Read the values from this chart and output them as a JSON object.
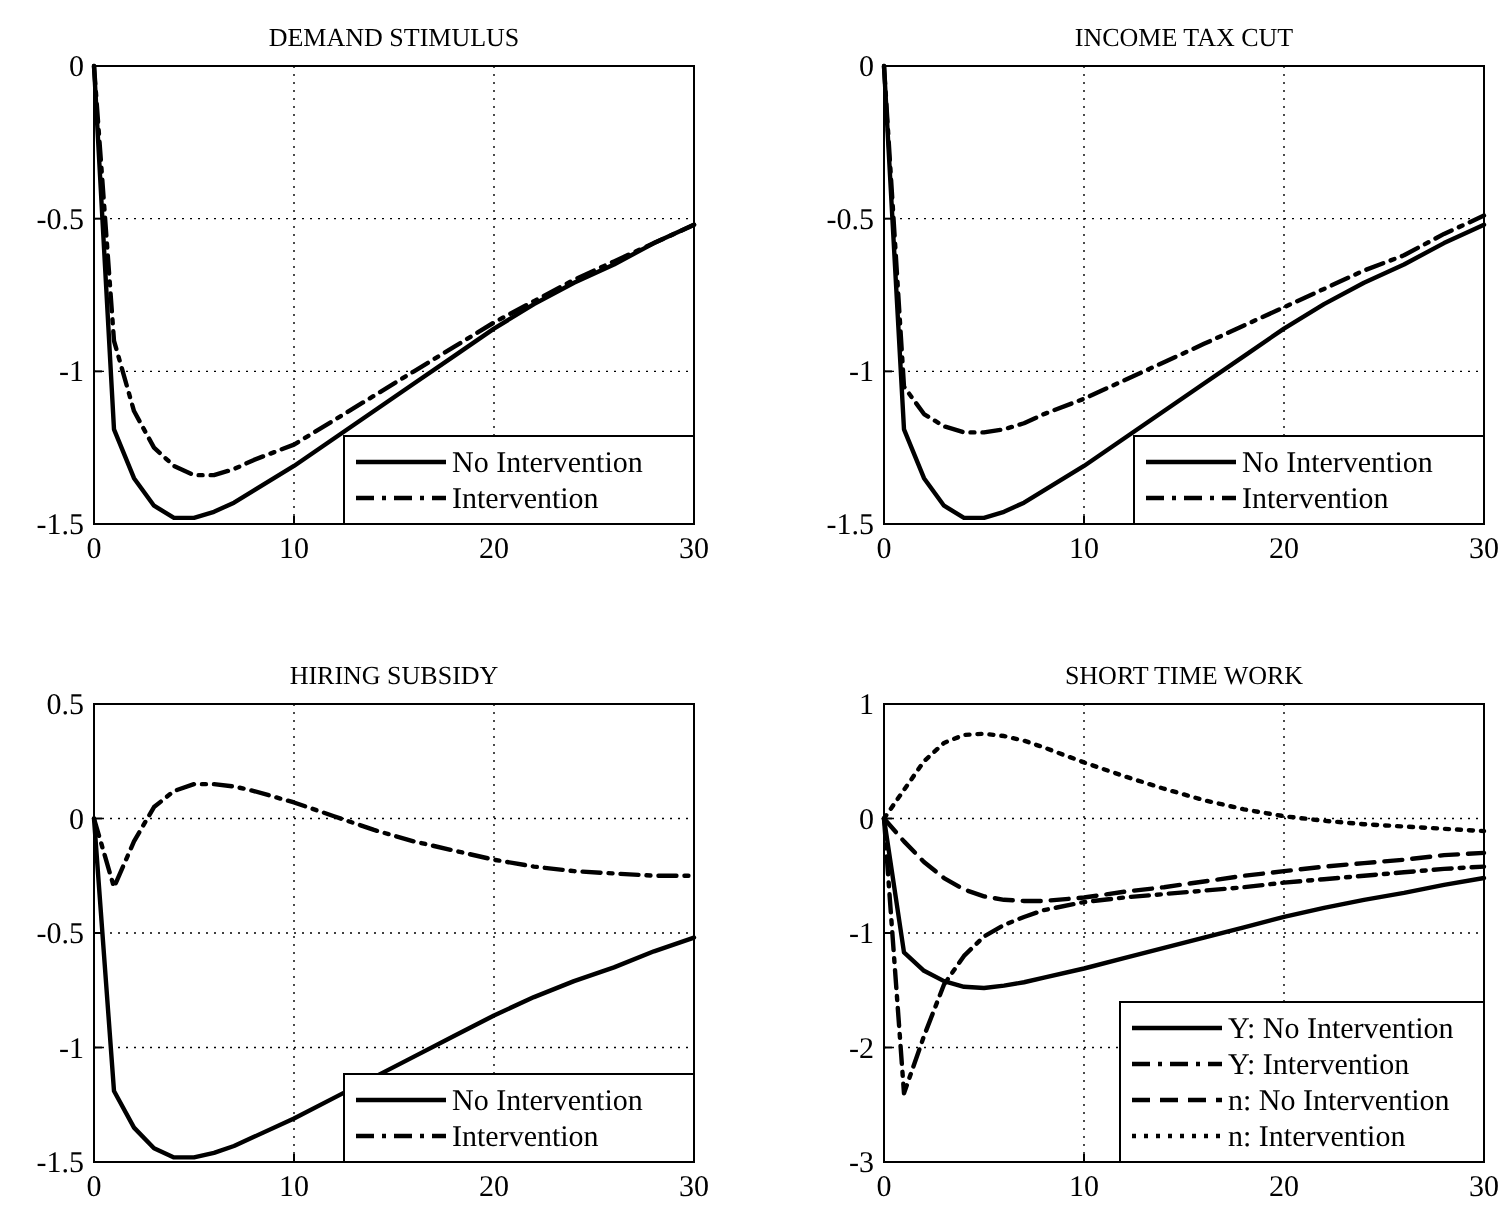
{
  "chart_data": [
    {
      "type": "line",
      "title": "DEMAND STIMULUS",
      "x": [
        0,
        1,
        2,
        3,
        4,
        5,
        6,
        7,
        8,
        10,
        12,
        14,
        16,
        18,
        20,
        22,
        24,
        26,
        28,
        30
      ],
      "xlim": [
        0,
        30
      ],
      "xticks": [
        0,
        10,
        20,
        30
      ],
      "ylim": [
        -1.5,
        0
      ],
      "yticks": [
        -1.5,
        -1,
        -0.5,
        0
      ],
      "grid": true,
      "legend": "bottom right",
      "series": [
        {
          "name": "No Intervention",
          "color": "#000000",
          "line_style": "solid",
          "values": [
            0,
            -1.19,
            -1.35,
            -1.44,
            -1.48,
            -1.48,
            -1.46,
            -1.43,
            -1.39,
            -1.31,
            -1.22,
            -1.13,
            -1.04,
            -0.95,
            -0.86,
            -0.78,
            -0.71,
            -0.65,
            -0.58,
            -0.52
          ]
        },
        {
          "name": "Intervention",
          "color": "#000000",
          "line_style": "dashdot",
          "values": [
            0,
            -0.9,
            -1.13,
            -1.25,
            -1.31,
            -1.34,
            -1.34,
            -1.32,
            -1.29,
            -1.24,
            -1.16,
            -1.08,
            -1.0,
            -0.92,
            -0.84,
            -0.77,
            -0.7,
            -0.64,
            -0.58,
            -0.52
          ]
        }
      ]
    },
    {
      "type": "line",
      "title": "INCOME TAX CUT",
      "x": [
        0,
        1,
        2,
        3,
        4,
        5,
        6,
        7,
        8,
        10,
        12,
        14,
        16,
        18,
        20,
        22,
        24,
        26,
        28,
        30
      ],
      "xlim": [
        0,
        30
      ],
      "xticks": [
        0,
        10,
        20,
        30
      ],
      "ylim": [
        -1.5,
        0
      ],
      "yticks": [
        -1.5,
        -1,
        -0.5,
        0
      ],
      "grid": true,
      "legend": "bottom right",
      "series": [
        {
          "name": "No Intervention",
          "color": "#000000",
          "line_style": "solid",
          "values": [
            0,
            -1.19,
            -1.35,
            -1.44,
            -1.48,
            -1.48,
            -1.46,
            -1.43,
            -1.39,
            -1.31,
            -1.22,
            -1.13,
            -1.04,
            -0.95,
            -0.86,
            -0.78,
            -0.71,
            -0.65,
            -0.58,
            -0.52
          ]
        },
        {
          "name": "Intervention",
          "color": "#000000",
          "line_style": "dashdot",
          "values": [
            0,
            -1.05,
            -1.14,
            -1.18,
            -1.2,
            -1.2,
            -1.19,
            -1.17,
            -1.14,
            -1.09,
            -1.03,
            -0.97,
            -0.91,
            -0.85,
            -0.79,
            -0.73,
            -0.67,
            -0.62,
            -0.55,
            -0.49
          ]
        }
      ]
    },
    {
      "type": "line",
      "title": "HIRING SUBSIDY",
      "x": [
        0,
        1,
        2,
        3,
        4,
        5,
        6,
        7,
        8,
        10,
        12,
        14,
        16,
        18,
        20,
        22,
        24,
        26,
        28,
        30
      ],
      "xlim": [
        0,
        30
      ],
      "xticks": [
        0,
        10,
        20,
        30
      ],
      "ylim": [
        -1.5,
        0.5
      ],
      "yticks": [
        -1.5,
        -1,
        -0.5,
        0,
        0.5
      ],
      "grid": true,
      "legend": "bottom right",
      "series": [
        {
          "name": "No Intervention",
          "color": "#000000",
          "line_style": "solid",
          "values": [
            0,
            -1.19,
            -1.35,
            -1.44,
            -1.48,
            -1.48,
            -1.46,
            -1.43,
            -1.39,
            -1.31,
            -1.22,
            null,
            -1.04,
            -0.95,
            -0.86,
            -0.78,
            -0.71,
            -0.65,
            -0.58,
            -0.52
          ]
        },
        {
          "name": "Intervention",
          "color": "#000000",
          "line_style": "dashdot",
          "values": [
            0,
            -0.3,
            -0.1,
            0.05,
            0.12,
            0.15,
            0.15,
            0.14,
            0.12,
            0.07,
            0.01,
            -0.05,
            -0.1,
            -0.14,
            -0.18,
            -0.21,
            -0.23,
            -0.24,
            -0.25,
            -0.25
          ]
        }
      ]
    },
    {
      "type": "line",
      "title": "SHORT TIME WORK",
      "x": [
        0,
        1,
        2,
        3,
        4,
        5,
        6,
        7,
        8,
        10,
        12,
        14,
        16,
        18,
        20,
        22,
        24,
        26,
        28,
        30
      ],
      "xlim": [
        0,
        30
      ],
      "xticks": [
        0,
        10,
        20,
        30
      ],
      "ylim": [
        -3,
        1
      ],
      "yticks": [
        -3,
        -2,
        -1,
        0,
        1
      ],
      "grid": true,
      "legend": "bottom right",
      "series": [
        {
          "name": "Y: No Intervention",
          "color": "#000000",
          "line_style": "solid",
          "values": [
            0,
            -1.17,
            -1.33,
            -1.42,
            -1.47,
            -1.48,
            -1.46,
            -1.43,
            -1.39,
            -1.31,
            -1.22,
            -1.13,
            -1.04,
            -0.95,
            -0.86,
            -0.78,
            -0.71,
            -0.65,
            -0.58,
            -0.52
          ]
        },
        {
          "name": "Y: Intervention",
          "color": "#000000",
          "line_style": "dashdot",
          "values": [
            0,
            -2.4,
            -1.9,
            -1.45,
            -1.2,
            -1.03,
            -0.93,
            -0.86,
            -0.8,
            -0.73,
            -0.69,
            -0.66,
            -0.63,
            -0.6,
            -0.56,
            -0.53,
            -0.5,
            -0.47,
            -0.44,
            -0.42
          ]
        },
        {
          "name": "n: No Intervention",
          "color": "#000000",
          "line_style": "dashed",
          "values": [
            0,
            -0.2,
            -0.38,
            -0.52,
            -0.62,
            -0.68,
            -0.71,
            -0.72,
            -0.72,
            -0.69,
            -0.64,
            -0.6,
            -0.55,
            -0.5,
            -0.46,
            -0.42,
            -0.39,
            -0.36,
            -0.32,
            -0.3
          ]
        },
        {
          "name": "n: Intervention",
          "color": "#000000",
          "line_style": "dotted",
          "values": [
            0,
            0.25,
            0.5,
            0.66,
            0.73,
            0.74,
            0.72,
            0.68,
            0.62,
            0.49,
            0.37,
            0.26,
            0.16,
            0.08,
            0.02,
            -0.02,
            -0.05,
            -0.07,
            -0.09,
            -0.11
          ]
        }
      ]
    }
  ]
}
